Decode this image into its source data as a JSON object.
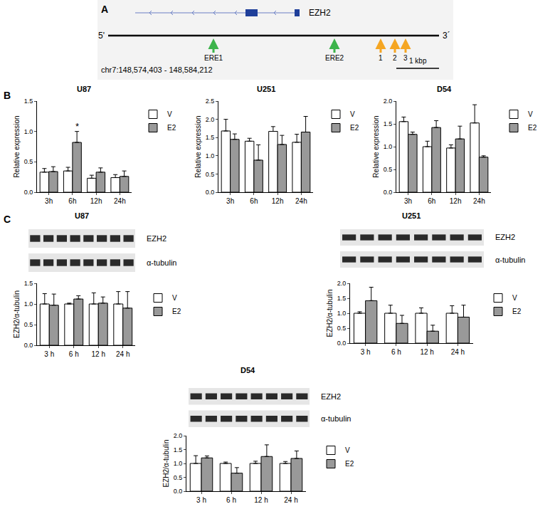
{
  "chart_data": [
    {
      "type": "bar",
      "title": "U87",
      "y_label": "Relative expression",
      "grid": false,
      "legend": "right",
      "categories": [
        "3h",
        "6h",
        "12h",
        "24h"
      ],
      "series": [
        {
          "name": "V",
          "color": "#ffffff",
          "values": [
            0.33,
            0.35,
            0.23,
            0.24
          ],
          "errors": [
            0.06,
            0.06,
            0.05,
            0.05
          ]
        },
        {
          "name": "E2",
          "color": "#999999",
          "values": [
            0.34,
            0.82,
            0.33,
            0.26
          ],
          "errors": [
            0.08,
            0.18,
            0.07,
            0.09
          ]
        }
      ],
      "ylim": [
        0,
        1.5
      ],
      "yticks": [
        {
          "value": 0,
          "label": "0.0"
        },
        {
          "value": 0.5,
          "label": "0.5"
        },
        {
          "value": 1,
          "label": "1.0"
        },
        {
          "value": 1.5,
          "label": "1.5"
        }
      ],
      "annotations": [
        {
          "text": "*",
          "category": "6h",
          "series": "E2"
        }
      ]
    },
    {
      "type": "bar",
      "title": "U251",
      "y_label": "Relative expression",
      "grid": false,
      "legend": "right",
      "categories": [
        "3h",
        "6h",
        "12h",
        "24h"
      ],
      "series": [
        {
          "name": "V",
          "color": "#ffffff",
          "values": [
            1.68,
            1.4,
            1.67,
            1.37
          ],
          "errors": [
            0.32,
            0.08,
            0.13,
            0.22
          ]
        },
        {
          "name": "E2",
          "color": "#999999",
          "values": [
            1.45,
            0.88,
            1.31,
            1.65
          ],
          "errors": [
            0.15,
            0.42,
            0.25,
            0.43
          ]
        }
      ],
      "ylim": [
        0,
        2.5
      ],
      "yticks": [
        {
          "value": 0,
          "label": "0.0"
        },
        {
          "value": 0.5,
          "label": "0.5"
        },
        {
          "value": 1,
          "label": "1.0"
        },
        {
          "value": 1.5,
          "label": "1.5"
        },
        {
          "value": 2,
          "label": "2.0"
        },
        {
          "value": 2.5,
          "label": "2.5"
        }
      ]
    },
    {
      "type": "bar",
      "title": "D54",
      "y_label": "Relative expression",
      "grid": false,
      "legend": "right",
      "categories": [
        "3h",
        "6h",
        "12h",
        "24h"
      ],
      "series": [
        {
          "name": "V",
          "color": "#ffffff",
          "values": [
            1.55,
            1.0,
            0.97,
            1.52
          ],
          "errors": [
            0.1,
            0.12,
            0.07,
            0.4
          ]
        },
        {
          "name": "E2",
          "color": "#999999",
          "values": [
            1.27,
            1.42,
            1.17,
            0.77
          ],
          "errors": [
            0.05,
            0.15,
            0.28,
            0.03
          ]
        }
      ],
      "ylim": [
        0,
        2
      ],
      "yticks": [
        {
          "value": 0,
          "label": "0.0"
        },
        {
          "value": 0.5,
          "label": "0.5"
        },
        {
          "value": 1,
          "label": "1.0"
        },
        {
          "value": 1.5,
          "label": "1.5"
        },
        {
          "value": 2,
          "label": "2.0"
        }
      ]
    },
    {
      "type": "bar",
      "title": "U87",
      "y_label": "EZH2/α-tubulin",
      "grid": false,
      "legend": "right",
      "blot_labels": [
        "EZH2",
        "α-tubulin"
      ],
      "categories": [
        "3 h",
        "6 h",
        "12 h",
        "24 h"
      ],
      "series": [
        {
          "name": "V",
          "color": "#ffffff",
          "values": [
            1.0,
            1.0,
            1.0,
            1.0
          ],
          "errors": [
            0.25,
            0.02,
            0.27,
            0.3
          ]
        },
        {
          "name": "E2",
          "color": "#999999",
          "values": [
            0.97,
            1.12,
            1.02,
            0.9
          ],
          "errors": [
            0.27,
            0.08,
            0.15,
            0.4
          ]
        }
      ],
      "ylim": [
        0,
        1.5
      ],
      "yticks": [
        {
          "value": 0,
          "label": "0.0"
        },
        {
          "value": 0.5,
          "label": "0.5"
        },
        {
          "value": 1,
          "label": "1.0"
        },
        {
          "value": 1.5,
          "label": "1.5"
        }
      ]
    },
    {
      "type": "bar",
      "title": "U251",
      "y_label": "EZH2/α-tubulin",
      "grid": false,
      "legend": "right",
      "blot_labels": [
        "EZH2",
        "α-tubulin"
      ],
      "categories": [
        "3 h",
        "6 h",
        "12 h",
        "24 h"
      ],
      "series": [
        {
          "name": "V",
          "color": "#ffffff",
          "values": [
            1.0,
            1.0,
            1.0,
            1.0
          ],
          "errors": [
            0.05,
            0.27,
            0.18,
            0.25
          ]
        },
        {
          "name": "E2",
          "color": "#999999",
          "values": [
            1.42,
            0.66,
            0.4,
            0.87
          ],
          "errors": [
            0.45,
            0.27,
            0.2,
            0.4
          ]
        }
      ],
      "ylim": [
        0,
        2
      ],
      "yticks": [
        {
          "value": 0,
          "label": "0.0"
        },
        {
          "value": 0.5,
          "label": "0.5"
        },
        {
          "value": 1,
          "label": "1.0"
        },
        {
          "value": 1.5,
          "label": "1.5"
        },
        {
          "value": 2,
          "label": "2.0"
        }
      ]
    },
    {
      "type": "bar",
      "title": "D54",
      "y_label": "EZH2/α-tubulin",
      "grid": false,
      "legend": "right",
      "blot_labels": [
        "EZH2",
        "α-tubulin"
      ],
      "categories": [
        "3 h",
        "6 h",
        "12 h",
        "24 h"
      ],
      "series": [
        {
          "name": "V",
          "color": "#ffffff",
          "values": [
            1.0,
            1.0,
            1.0,
            1.0
          ],
          "errors": [
            0.28,
            0.05,
            0.08,
            0.07
          ]
        },
        {
          "name": "E2",
          "color": "#999999",
          "values": [
            1.2,
            0.65,
            1.25,
            1.18
          ],
          "errors": [
            0.07,
            0.2,
            0.42,
            0.27
          ]
        }
      ],
      "ylim": [
        0,
        2
      ],
      "yticks": [
        {
          "value": 0,
          "label": "0.0"
        },
        {
          "value": 0.5,
          "label": "0.5"
        },
        {
          "value": 1,
          "label": "1.0"
        },
        {
          "value": 1.5,
          "label": "1.5"
        },
        {
          "value": 2,
          "label": "2.0"
        }
      ]
    }
  ],
  "panel_labels": [
    "A",
    "B",
    "C"
  ],
  "diagram": {
    "gene": "EZH2",
    "five_prime": "5'",
    "three_prime": "3´",
    "sites": [
      {
        "label": "ERE1",
        "kind": "ERE"
      },
      {
        "label": "ERE2",
        "kind": "ERE"
      },
      {
        "label": "1",
        "kind": "primer"
      },
      {
        "label": "2",
        "kind": "primer"
      },
      {
        "label": "3",
        "kind": "primer"
      }
    ],
    "scale_bar": "1 kbp",
    "coordinates": "chr7:148,574,403 - 148,584,212"
  }
}
